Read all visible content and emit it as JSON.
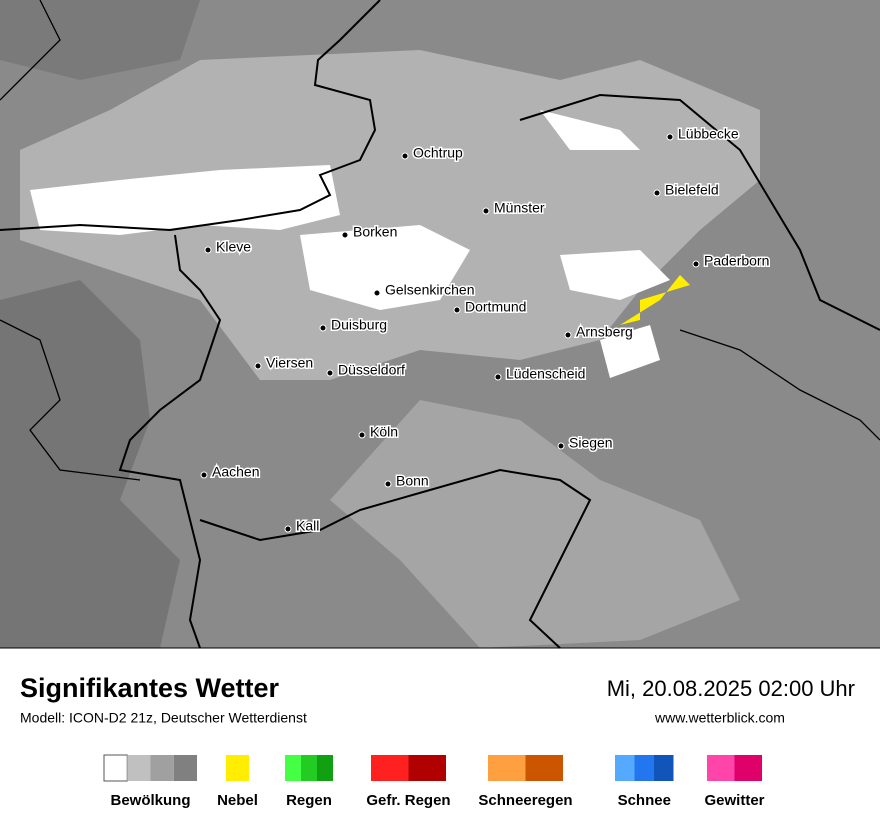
{
  "map": {
    "cities": [
      "Lübbecke",
      "Ochtrup",
      "Bielefeld",
      "Münster",
      "Borken",
      "Kleve",
      "Paderborn",
      "Gelsenkirchen",
      "Dortmund",
      "Duisburg",
      "Arnsberg",
      "Viersen",
      "Düsseldorf",
      "Lüdenscheid",
      "Köln",
      "Siegen",
      "Aachen",
      "Bonn",
      "Kall"
    ]
  },
  "footer": {
    "title": "Signifikantes Wetter",
    "subtitle": "Modell: ICON-D2 21z, Deutscher Wetterdienst",
    "datetime": "Mi, 20.08.2025 02:00 Uhr",
    "url": "www.wetterblick.com"
  },
  "legend": [
    {
      "label": "Bewölkung",
      "colors": [
        "#ffffff",
        "#c0c0c0",
        "#a0a0a0",
        "#808080"
      ]
    },
    {
      "label": "Nebel",
      "colors": [
        "#ffee00"
      ]
    },
    {
      "label": "Regen",
      "colors": [
        "#44ff44",
        "#22cc22",
        "#11a011"
      ]
    },
    {
      "label": "Gefr. Regen",
      "colors": [
        "#ff2020",
        "#b00000"
      ]
    },
    {
      "label": "Schneeregen",
      "colors": [
        "#ffa040",
        "#cc5500"
      ]
    },
    {
      "label": "Schnee",
      "colors": [
        "#55aaff",
        "#2277ee",
        "#1155bb"
      ]
    },
    {
      "label": "Gewitter",
      "colors": [
        "#ff44aa",
        "#e0006a"
      ]
    }
  ]
}
